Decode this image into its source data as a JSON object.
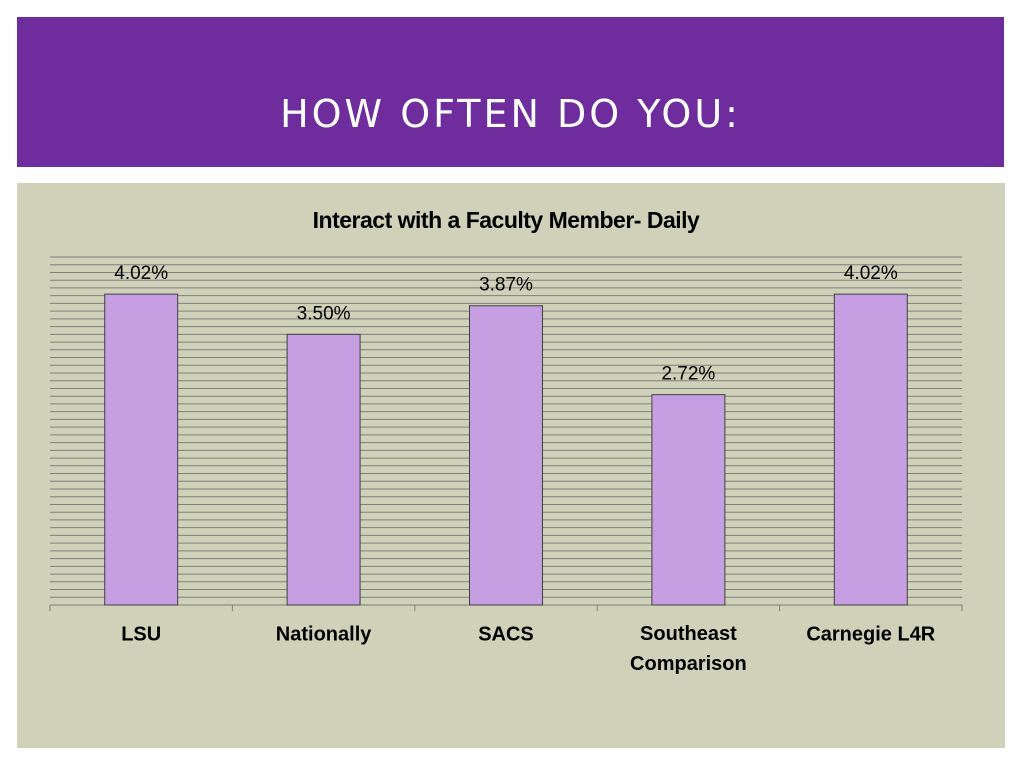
{
  "header": {
    "title": "HOW OFTEN DO YOU:"
  },
  "chart_data": {
    "type": "bar",
    "title": "Interact with a Faculty Member- Daily",
    "categories": [
      "LSU",
      "Nationally",
      "SACS",
      "Southeast Comparison",
      "Carnegie L4R"
    ],
    "values": [
      4.02,
      3.5,
      3.87,
      2.72,
      4.02
    ],
    "value_labels": [
      "4.02%",
      "3.50%",
      "3.87%",
      "2.72%",
      "4.02%"
    ],
    "color": "#c59fe1",
    "ylim": [
      0,
      4.5
    ],
    "yticks": [
      0,
      0.1,
      0.2,
      0.3,
      0.4,
      0.5,
      0.6,
      0.7,
      0.8,
      0.9,
      1,
      1.1,
      1.2,
      1.3,
      1.4,
      1.5,
      1.6,
      1.7,
      1.8,
      1.9,
      2,
      2.1,
      2.2,
      2.3,
      2.4,
      2.5,
      2.6,
      2.7,
      2.8,
      2.9,
      3,
      3.1,
      3.2,
      3.3,
      3.4,
      3.5,
      3.6,
      3.7,
      3.8,
      3.9,
      4,
      4.1,
      4.2,
      4.3,
      4.4,
      4.5
    ],
    "grid": true
  }
}
